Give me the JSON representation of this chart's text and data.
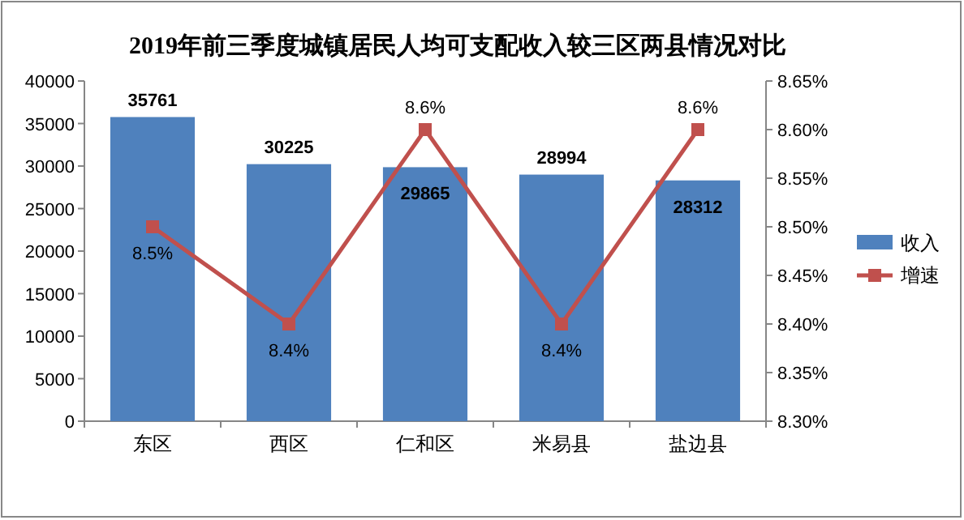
{
  "chart_data": {
    "type": "bar",
    "title": "2019年前三季度城镇居民人均可支配收入较三区两县情况对比",
    "categories": [
      "东区",
      "西区",
      "仁和区",
      "米易县",
      "盐边县"
    ],
    "series": [
      {
        "name": "收入",
        "color": "#4f81bd",
        "values": [
          35761,
          30225,
          29865,
          28994,
          28312
        ],
        "value_labels": [
          "35761",
          "30225",
          "29865",
          "28994",
          "28312"
        ]
      },
      {
        "name": "增速",
        "type": "line",
        "axis": "y2",
        "color": "#c0504d",
        "values": [
          8.5,
          8.4,
          8.6,
          8.4,
          8.6
        ],
        "value_labels": [
          "8.5%",
          "8.4%",
          "8.6%",
          "8.4%",
          "8.6%"
        ]
      }
    ],
    "ylim": [
      0,
      40000
    ],
    "yticks": [
      0,
      5000,
      10000,
      15000,
      20000,
      25000,
      30000,
      35000,
      40000
    ],
    "y2lim": [
      8.3,
      8.65
    ],
    "y2ticks": [
      {
        "value": 8.3,
        "label": "8.30%"
      },
      {
        "value": 8.35,
        "label": "8.35%"
      },
      {
        "value": 8.4,
        "label": "8.40%"
      },
      {
        "value": 8.45,
        "label": "8.45%"
      },
      {
        "value": 8.5,
        "label": "8.50%"
      },
      {
        "value": 8.55,
        "label": "8.55%"
      },
      {
        "value": 8.6,
        "label": "8.60%"
      },
      {
        "value": 8.65,
        "label": "8.65%"
      }
    ],
    "marker": "square",
    "legend": "right",
    "grid": false
  }
}
